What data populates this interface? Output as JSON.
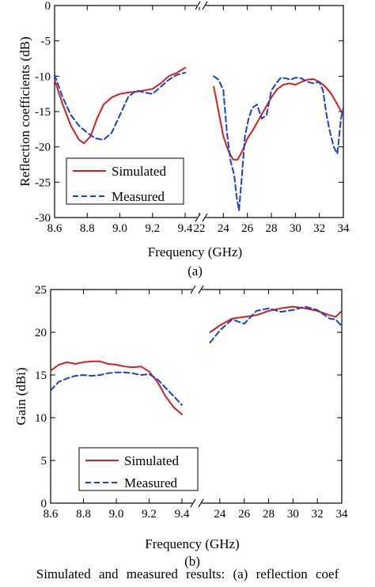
{
  "caption": "Simulated and measured results: (a) reflection coef",
  "legend": {
    "simulated": "Simulated",
    "measured": "Measured"
  },
  "colors": {
    "simulated": "#d62020",
    "measured": "#1a3fd6"
  },
  "chart_data": [
    {
      "type": "line",
      "panel_label": "(a)",
      "xlabel": "Frequency (GHz)",
      "ylabel": "Reflection coefficients (dB)",
      "ylim": [
        -30,
        0
      ],
      "yticks": [
        0,
        -5,
        -10,
        -15,
        -20,
        -25,
        -30
      ],
      "broken_x_axis": true,
      "x_segments": [
        {
          "xlim": [
            8.6,
            9.4
          ],
          "ticks": [
            8.6,
            8.8,
            9.0,
            9.2,
            9.4
          ],
          "tick_labels": [
            "8.6",
            "8.8",
            "9.0",
            "9.2",
            "9.4"
          ]
        },
        {
          "xlim": [
            22,
            34
          ],
          "ticks": [
            22,
            24,
            26,
            28,
            30,
            32,
            34
          ],
          "tick_labels": [
            "22",
            "24",
            "26",
            "28",
            "30",
            "32",
            "34"
          ]
        }
      ],
      "legend_position": "bottom-left",
      "series": [
        {
          "name": "Simulated",
          "style": "solid",
          "segments": [
            {
              "x": [
                8.6,
                8.65,
                8.7,
                8.75,
                8.78,
                8.82,
                8.86,
                8.9,
                8.95,
                9.0,
                9.05,
                9.1,
                9.15,
                9.2,
                9.25,
                9.3,
                9.35,
                9.4
              ],
              "y": [
                -10.5,
                -14,
                -17,
                -19,
                -19.5,
                -18.5,
                -16,
                -14,
                -13,
                -12.5,
                -12.3,
                -12.2,
                -12,
                -11.8,
                -11,
                -10,
                -9.5,
                -8.8
              ]
            },
            {
              "x": [
                23.2,
                23.6,
                24,
                24.4,
                24.8,
                25.2,
                25.6,
                26,
                26.5,
                27,
                27.5,
                28,
                28.5,
                29,
                29.5,
                30,
                30.5,
                31,
                31.5,
                32,
                32.5,
                33,
                33.5,
                34
              ],
              "y": [
                -11.5,
                -15,
                -18.5,
                -20.5,
                -21.8,
                -21.8,
                -20.5,
                -18.8,
                -17.5,
                -16,
                -14.5,
                -13,
                -11.8,
                -11.2,
                -11,
                -11.2,
                -10.8,
                -10.5,
                -10.4,
                -10.8,
                -11.5,
                -12.5,
                -14,
                -15.5
              ]
            }
          ]
        },
        {
          "name": "Measured",
          "style": "dashed",
          "segments": [
            {
              "x": [
                8.6,
                8.65,
                8.7,
                8.75,
                8.8,
                8.85,
                8.9,
                8.95,
                9.0,
                9.05,
                9.1,
                9.15,
                9.2,
                9.25,
                9.3,
                9.35,
                9.4
              ],
              "y": [
                -9.8,
                -13,
                -15.5,
                -17,
                -18,
                -18.8,
                -19,
                -18,
                -15.5,
                -13,
                -12,
                -12.3,
                -12.5,
                -11.5,
                -10.5,
                -9.8,
                -9.5
              ]
            },
            {
              "x": [
                23.2,
                23.6,
                24,
                24.3,
                24.6,
                24.9,
                25.1,
                25.3,
                25.5,
                25.8,
                26.1,
                26.4,
                26.8,
                27.2,
                27.6,
                28,
                28.4,
                28.8,
                29.2,
                29.6,
                30,
                30.5,
                31,
                31.5,
                32,
                32.3,
                32.6,
                32.9,
                33.2,
                33.5,
                33.8,
                34
              ],
              "y": [
                -10,
                -10.5,
                -12,
                -18,
                -22,
                -24,
                -27,
                -29,
                -25,
                -18.5,
                -16,
                -14.5,
                -14,
                -16,
                -15.5,
                -12,
                -11,
                -10.2,
                -10.3,
                -10.5,
                -10.2,
                -10.3,
                -10.8,
                -11,
                -10.8,
                -12,
                -15.5,
                -18,
                -20,
                -21,
                -16,
                -14.5
              ]
            }
          ]
        }
      ]
    },
    {
      "type": "line",
      "panel_label": "(b)",
      "xlabel": "Frequency (GHz)",
      "ylabel": "Gain (dBi)",
      "ylim": [
        0,
        25
      ],
      "yticks": [
        0,
        5,
        10,
        15,
        20,
        25
      ],
      "broken_x_axis": true,
      "x_segments": [
        {
          "xlim": [
            8.6,
            9.4
          ],
          "ticks": [
            8.6,
            8.8,
            9.0,
            9.2,
            9.4
          ],
          "tick_labels": [
            "8.6",
            "8.8",
            "9.0",
            "9.2",
            "9.4"
          ]
        },
        {
          "xlim": [
            22,
            34
          ],
          "ticks": [
            24,
            26,
            28,
            30,
            32,
            34
          ],
          "tick_labels": [
            "24",
            "26",
            "28",
            "30",
            "32",
            "34"
          ]
        }
      ],
      "legend_position": "bottom-left",
      "series": [
        {
          "name": "Simulated",
          "style": "solid",
          "segments": [
            {
              "x": [
                8.6,
                8.65,
                8.7,
                8.75,
                8.8,
                8.85,
                8.9,
                8.95,
                9.0,
                9.05,
                9.1,
                9.15,
                9.2,
                9.25,
                9.3,
                9.35,
                9.4
              ],
              "y": [
                15.5,
                16.2,
                16.5,
                16.3,
                16.5,
                16.6,
                16.6,
                16.3,
                16.2,
                16.0,
                15.9,
                16.0,
                15.4,
                14.2,
                12.5,
                11.2,
                10.4
              ]
            },
            {
              "x": [
                23.2,
                24,
                25,
                26,
                27,
                28,
                29,
                30,
                31,
                32,
                33,
                33.5,
                34
              ],
              "y": [
                20,
                20.8,
                21.6,
                21.8,
                22.0,
                22.5,
                22.8,
                23.0,
                22.8,
                22.5,
                22.0,
                21.8,
                22.5
              ]
            }
          ]
        },
        {
          "name": "Measured",
          "style": "dashed",
          "segments": [
            {
              "x": [
                8.6,
                8.65,
                8.7,
                8.75,
                8.8,
                8.85,
                8.9,
                8.95,
                9.0,
                9.05,
                9.1,
                9.15,
                9.2,
                9.25,
                9.3,
                9.35,
                9.4
              ],
              "y": [
                13.2,
                14.2,
                14.6,
                14.9,
                15.0,
                14.9,
                15.0,
                15.2,
                15.3,
                15.3,
                15.2,
                15.0,
                15.1,
                14.5,
                13.5,
                12.5,
                11.5
              ]
            },
            {
              "x": [
                23.2,
                24,
                25,
                26,
                27,
                28,
                29,
                30,
                31,
                32,
                33,
                33.5,
                34
              ],
              "y": [
                18.8,
                20.2,
                21.5,
                21.0,
                22.5,
                22.8,
                22.4,
                22.6,
                23.0,
                22.6,
                21.6,
                21.5,
                20.7
              ]
            }
          ]
        }
      ]
    }
  ]
}
